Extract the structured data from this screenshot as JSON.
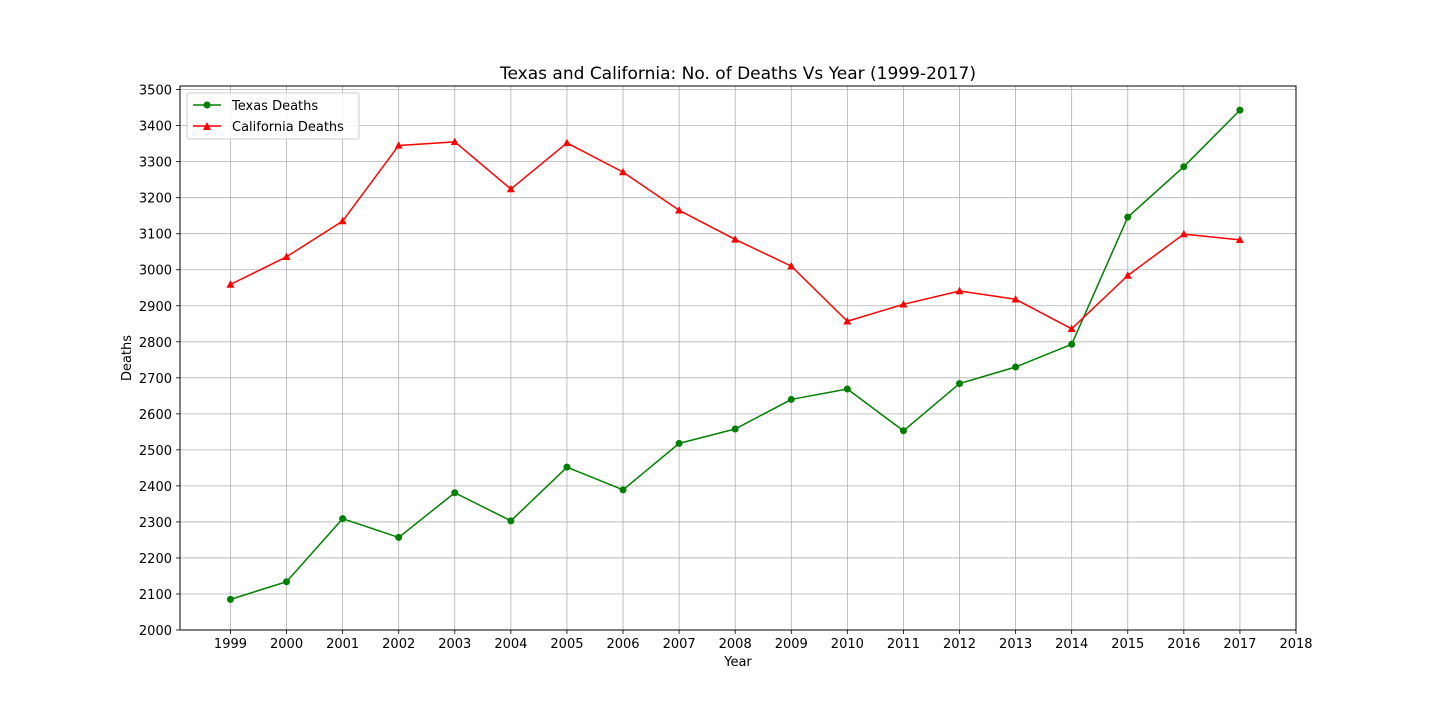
{
  "chart_data": {
    "type": "line",
    "title": "Texas and California: No. of Deaths Vs Year (1999-2017)",
    "xlabel": "Year",
    "ylabel": "Deaths",
    "xlim": [
      1998.1,
      2018
    ],
    "ylim": [
      2000,
      3510
    ],
    "xticks": [
      1999,
      2000,
      2001,
      2002,
      2003,
      2004,
      2005,
      2006,
      2007,
      2008,
      2009,
      2010,
      2011,
      2012,
      2013,
      2014,
      2015,
      2016,
      2017,
      2018
    ],
    "yticks": [
      2000,
      2100,
      2200,
      2300,
      2400,
      2500,
      2600,
      2700,
      2800,
      2900,
      3000,
      3100,
      3200,
      3300,
      3400,
      3500
    ],
    "grid": true,
    "legend_position": "upper-left",
    "x": [
      1999,
      2000,
      2001,
      2002,
      2003,
      2004,
      2005,
      2006,
      2007,
      2008,
      2009,
      2010,
      2011,
      2012,
      2013,
      2014,
      2015,
      2016,
      2017
    ],
    "series": [
      {
        "name": "Texas Deaths",
        "color": "#008000",
        "marker": "circle",
        "values": [
          2085,
          2134,
          2309,
          2257,
          2381,
          2303,
          2452,
          2389,
          2518,
          2558,
          2640,
          2669,
          2553,
          2684,
          2730,
          2793,
          3146,
          3286,
          3443
        ]
      },
      {
        "name": "California Deaths",
        "color": "#ff0000",
        "marker": "triangle",
        "values": [
          2959,
          3036,
          3135,
          3345,
          3355,
          3224,
          3352,
          3271,
          3165,
          3084,
          3010,
          2857,
          2904,
          2941,
          2918,
          2836,
          2984,
          3099,
          3083
        ]
      }
    ]
  }
}
